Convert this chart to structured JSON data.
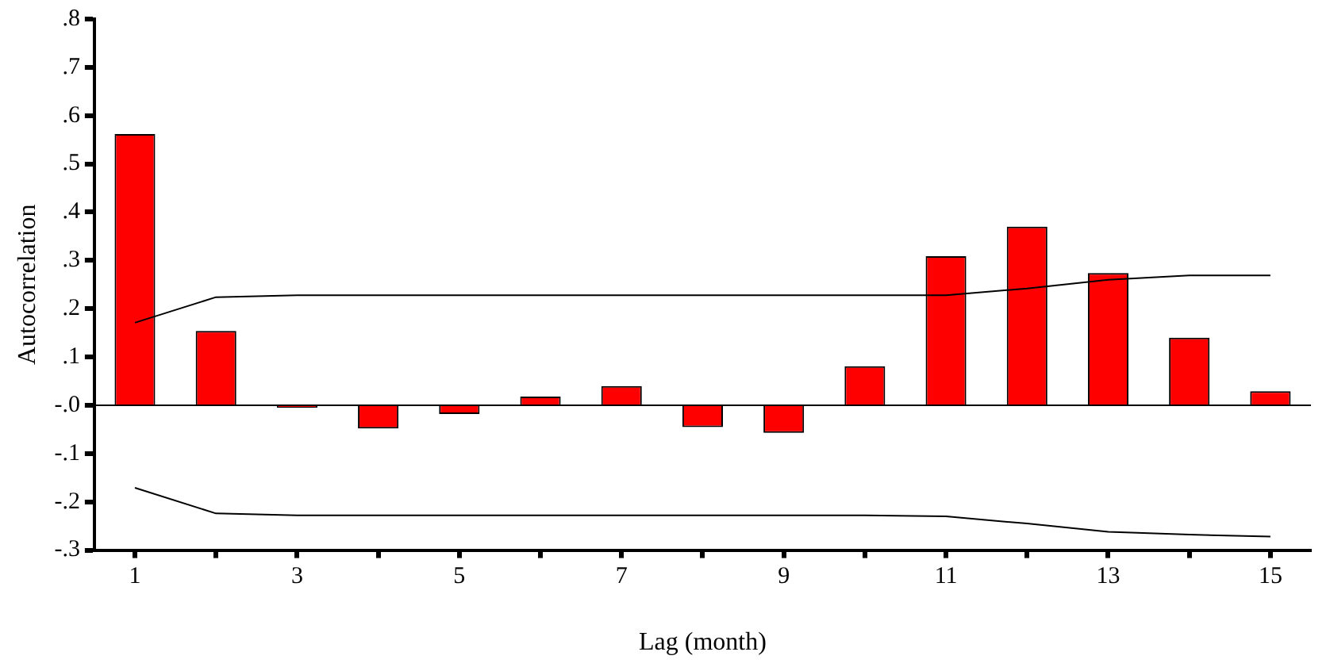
{
  "chart_data": {
    "type": "bar",
    "xlabel": "Lag (month)",
    "ylabel": "Autocorrelation",
    "categories": [
      "1",
      null,
      "3",
      null,
      "5",
      null,
      "7",
      null,
      "9",
      null,
      "11",
      null,
      "13",
      null,
      "15"
    ],
    "series": [
      {
        "color": "#ff0000",
        "values": [
          0.562,
          0.154,
          -0.005,
          -0.048,
          -0.018,
          0.018,
          0.04,
          -0.045,
          -0.057,
          0.081,
          0.309,
          0.37,
          0.274,
          0.14,
          0.029
        ]
      },
      {
        "type": "line",
        "color": "#000000",
        "values": [
          0.171,
          0.224,
          0.228,
          0.228,
          0.228,
          0.228,
          0.228,
          0.228,
          0.228,
          0.228,
          0.228,
          0.242,
          0.26,
          0.269,
          0.269
        ]
      },
      {
        "type": "line",
        "color": "#000000",
        "values": [
          -0.171,
          -0.224,
          -0.228,
          -0.228,
          -0.228,
          -0.228,
          -0.228,
          -0.228,
          -0.228,
          -0.228,
          -0.23,
          -0.245,
          -0.262,
          -0.268,
          -0.272
        ]
      }
    ],
    "ylim": [
      -0.3,
      0.8
    ],
    "yticks": [
      {
        "value": 0.8,
        "label": ".8"
      },
      {
        "value": 0.7,
        "label": ".7"
      },
      {
        "value": 0.6,
        "label": ".6"
      },
      {
        "value": 0.5,
        "label": ".5"
      },
      {
        "value": 0.4,
        "label": ".4"
      },
      {
        "value": 0.3,
        "label": ".3"
      },
      {
        "value": 0.2,
        "label": ".2"
      },
      {
        "value": 0.1,
        "label": ".1"
      },
      {
        "value": 0,
        "label": "-.0"
      },
      {
        "value": -0.1,
        "label": "-.1"
      },
      {
        "value": -0.2,
        "label": "-.2"
      },
      {
        "value": -0.3,
        "label": "-.3"
      }
    ],
    "ref_lines": [
      {
        "axis": "y",
        "value": 0,
        "color": "#000000"
      }
    ],
    "grid": false,
    "legend": false,
    "marker": "none",
    "line_style": "solid"
  }
}
